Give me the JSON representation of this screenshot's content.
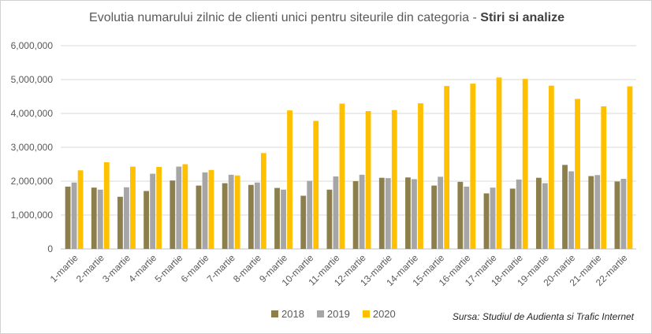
{
  "chart_data": {
    "type": "bar",
    "title": "Evolutia numarului zilnic de clienti unici pentru siteurile din categoria",
    "title_bold": "Stiri si analize",
    "title_separator": " - ",
    "ylim": [
      0,
      6000000
    ],
    "yticks": [
      "0",
      "1,000,000",
      "2,000,000",
      "3,000,000",
      "4,000,000",
      "5,000,000",
      "6,000,000"
    ],
    "grid": true,
    "legend_position": "bottom",
    "categories": [
      "1-martie",
      "2-martie",
      "3-martie",
      "4-martie",
      "5-martie",
      "6-martie",
      "7-martie",
      "8-martie",
      "9-martie",
      "10-martie",
      "11-martie",
      "12-martie",
      "13-martie",
      "14-martie",
      "15-martie",
      "16-martie",
      "17-martie",
      "18-martie",
      "19-martie",
      "20-martie",
      "21-martie",
      "22-martie"
    ],
    "series": [
      {
        "name": "2018",
        "color": "#8c7f4b",
        "values": [
          1840000,
          1810000,
          1540000,
          1710000,
          2020000,
          1870000,
          1940000,
          1890000,
          1800000,
          1570000,
          1750000,
          2000000,
          2100000,
          2110000,
          1870000,
          1980000,
          1640000,
          1780000,
          2100000,
          2480000,
          2150000,
          1990000
        ]
      },
      {
        "name": "2019",
        "color": "#a6a6a6",
        "values": [
          1960000,
          1750000,
          1820000,
          2220000,
          2430000,
          2260000,
          2190000,
          1960000,
          1750000,
          2010000,
          2140000,
          2190000,
          2090000,
          2060000,
          2130000,
          1840000,
          1810000,
          2050000,
          1940000,
          2290000,
          2180000,
          2070000
        ]
      },
      {
        "name": "2020",
        "color": "#ffc000",
        "values": [
          2320000,
          2560000,
          2430000,
          2420000,
          2500000,
          2330000,
          2170000,
          2830000,
          4090000,
          3780000,
          4290000,
          4070000,
          4100000,
          4300000,
          4810000,
          4880000,
          5060000,
          5020000,
          4820000,
          4430000,
          4210000,
          4800000
        ]
      }
    ]
  },
  "source_text": "Sursa: Studiul de Audienta si Trafic Internet"
}
